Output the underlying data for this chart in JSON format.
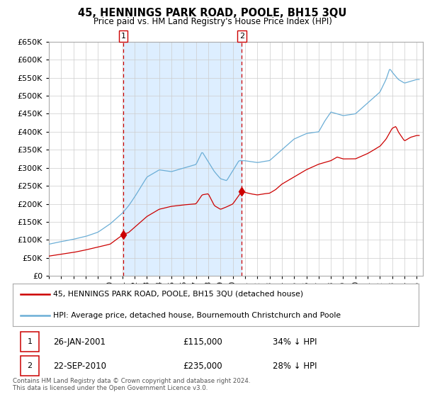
{
  "title": "45, HENNINGS PARK ROAD, POOLE, BH15 3QU",
  "subtitle": "Price paid vs. HM Land Registry's House Price Index (HPI)",
  "hpi_color": "#6baed6",
  "price_color": "#cc0000",
  "shaded_color": "#ddeeff",
  "background_color": "#ffffff",
  "grid_color": "#cccccc",
  "ylim": [
    0,
    650000
  ],
  "yticks": [
    0,
    50000,
    100000,
    150000,
    200000,
    250000,
    300000,
    350000,
    400000,
    450000,
    500000,
    550000,
    600000,
    650000
  ],
  "xlim_start": 1995.0,
  "xlim_end": 2025.5,
  "sale1_year": 2001.07,
  "sale1_price": 115000,
  "sale1_label": "26-JAN-2001",
  "sale1_pct": "34%",
  "sale2_year": 2010.73,
  "sale2_price": 235000,
  "sale2_label": "22-SEP-2010",
  "sale2_pct": "28%",
  "legend_line1": "45, HENNINGS PARK ROAD, POOLE, BH15 3QU (detached house)",
  "legend_line2": "HPI: Average price, detached house, Bournemouth Christchurch and Poole",
  "footnote1": "Contains HM Land Registry data © Crown copyright and database right 2024.",
  "footnote2": "This data is licensed under the Open Government Licence v3.0."
}
